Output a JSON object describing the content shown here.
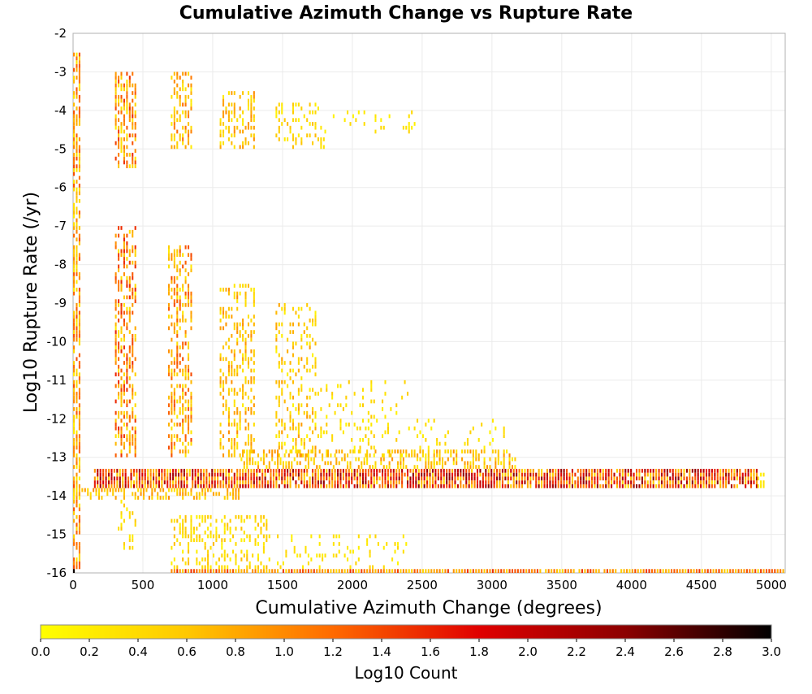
{
  "chart_data": {
    "type": "heatmap",
    "title": "Cumulative Azimuth Change vs Rupture Rate",
    "xlabel": "Cumulative Azimuth Change (degrees)",
    "ylabel": "Log10 Rupture Rate (/yr)",
    "xlim": [
      0,
      5100
    ],
    "ylim": [
      -16,
      -2
    ],
    "x_ticks": [
      "0",
      "500",
      "1000",
      "1500",
      "2000",
      "2500",
      "3000",
      "3500",
      "4000",
      "4500",
      "5000"
    ],
    "y_ticks": [
      "-2",
      "-3",
      "-4",
      "-5",
      "-6",
      "-7",
      "-8",
      "-9",
      "-10",
      "-11",
      "-12",
      "-13",
      "-14",
      "-15",
      "-16"
    ],
    "grid": true,
    "bin_width_x": 20,
    "bin_height_y": 0.1,
    "colorbar": {
      "label": "Log10 Count",
      "range": [
        0.0,
        3.0
      ],
      "ticks": [
        "0.0",
        "0.2",
        "0.4",
        "0.6",
        "0.8",
        "1.0",
        "1.2",
        "1.4",
        "1.6",
        "1.8",
        "2.0",
        "2.2",
        "2.4",
        "2.6",
        "2.8",
        "3.0"
      ],
      "colormap": [
        "#ffff00",
        "#ffc800",
        "#ff6a00",
        "#e00000",
        "#8c0000",
        "#000000"
      ]
    },
    "bands": [
      {
        "x": [
          0,
          60
        ],
        "y": [
          -16,
          -2.5
        ],
        "level": [
          0.2,
          1.4
        ],
        "density": 0.7
      },
      {
        "x": [
          300,
          450
        ],
        "y": [
          -5.5,
          -3.0
        ],
        "level": [
          0.2,
          1.6
        ],
        "density": 0.6
      },
      {
        "x": [
          700,
          850
        ],
        "y": [
          -5.0,
          -3.0
        ],
        "level": [
          0.2,
          1.2
        ],
        "density": 0.5
      },
      {
        "x": [
          1050,
          1300
        ],
        "y": [
          -5.0,
          -3.5
        ],
        "level": [
          0.2,
          1.0
        ],
        "density": 0.4
      },
      {
        "x": [
          1450,
          1800
        ],
        "y": [
          -5.0,
          -3.8
        ],
        "level": [
          0.1,
          0.7
        ],
        "density": 0.25
      },
      {
        "x": [
          1800,
          2450
        ],
        "y": [
          -4.6,
          -4.0
        ],
        "level": [
          0.1,
          0.5
        ],
        "density": 0.12
      },
      {
        "x": [
          300,
          450
        ],
        "y": [
          -13.0,
          -7.0
        ],
        "level": [
          0.2,
          1.6
        ],
        "density": 0.55
      },
      {
        "x": [
          680,
          860
        ],
        "y": [
          -13.0,
          -7.5
        ],
        "level": [
          0.2,
          1.4
        ],
        "density": 0.5
      },
      {
        "x": [
          1050,
          1300
        ],
        "y": [
          -13.0,
          -8.5
        ],
        "level": [
          0.2,
          1.0
        ],
        "density": 0.35
      },
      {
        "x": [
          1450,
          1750
        ],
        "y": [
          -13.0,
          -9.0
        ],
        "level": [
          0.1,
          0.9
        ],
        "density": 0.3
      },
      {
        "x": [
          1750,
          2400
        ],
        "y": [
          -13.0,
          -11.0
        ],
        "level": [
          0.1,
          0.6
        ],
        "density": 0.15
      },
      {
        "x": [
          2400,
          3100
        ],
        "y": [
          -13.3,
          -12.0
        ],
        "level": [
          0.1,
          0.5
        ],
        "density": 0.1
      },
      {
        "x": [
          150,
          4900
        ],
        "y": [
          -13.8,
          -13.3
        ],
        "level": [
          0.4,
          2.4
        ],
        "density": 0.92
      },
      {
        "x": [
          4900,
          4950
        ],
        "y": [
          -13.8,
          -13.4
        ],
        "level": [
          0.1,
          0.4
        ],
        "density": 0.8
      },
      {
        "x": [
          1200,
          3200
        ],
        "y": [
          -13.3,
          -12.8
        ],
        "level": [
          0.2,
          1.0
        ],
        "density": 0.5
      },
      {
        "x": [
          0,
          1200
        ],
        "y": [
          -14.1,
          -13.8
        ],
        "level": [
          0.3,
          1.0
        ],
        "density": 0.55
      },
      {
        "x": [
          320,
          460
        ],
        "y": [
          -15.4,
          -14.1
        ],
        "level": [
          0.1,
          0.6
        ],
        "density": 0.3
      },
      {
        "x": [
          700,
          1400
        ],
        "y": [
          -15.9,
          -14.5
        ],
        "level": [
          0.1,
          0.7
        ],
        "density": 0.35
      },
      {
        "x": [
          1400,
          2400
        ],
        "y": [
          -15.9,
          -15.0
        ],
        "level": [
          0.1,
          0.5
        ],
        "density": 0.15
      },
      {
        "x": [
          700,
          5100
        ],
        "y": [
          -16.0,
          -15.9
        ],
        "level": [
          0.4,
          1.6
        ],
        "density": 0.95
      },
      {
        "x": [
          0,
          20
        ],
        "y": [
          -16.0,
          -15.9
        ],
        "level": [
          2.8,
          3.0
        ],
        "density": 1.0
      }
    ]
  }
}
